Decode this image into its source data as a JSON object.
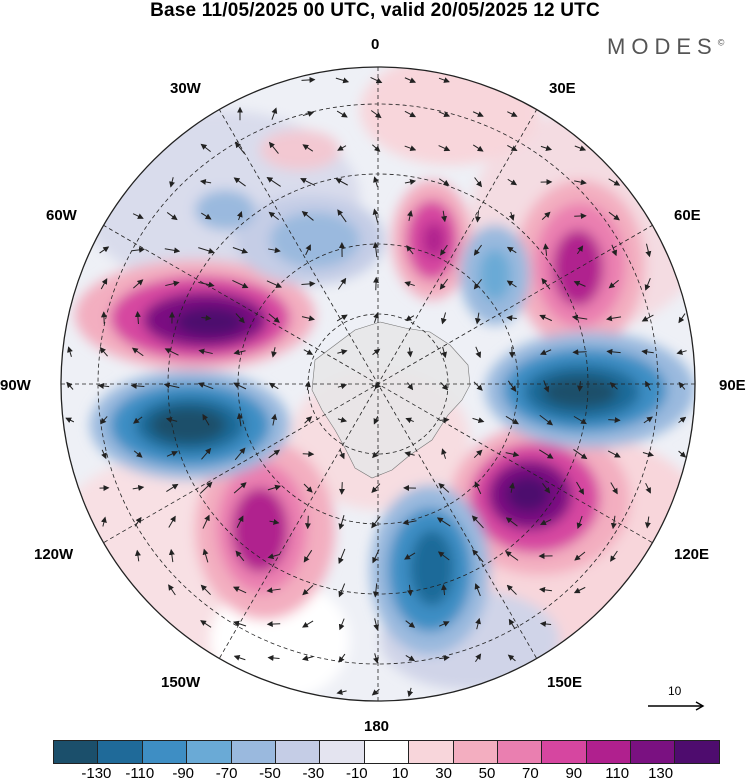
{
  "title": "Base 11/05/2025 00 UTC, valid 20/05/2025 12 UTC",
  "brand": "MODES",
  "brand_mark": "©",
  "longitudes": {
    "top": "0",
    "top_right": "30E",
    "right_upper": "60E",
    "right": "90E",
    "right_lower": "120E",
    "bottom_right": "150E",
    "bottom": "180",
    "bottom_left": "150W",
    "left_lower": "120W",
    "left": "90W",
    "left_upper": "60W",
    "top_left": "30W"
  },
  "reference_vector": "10",
  "colorbar": {
    "colors": [
      "#1b4f6b",
      "#1f6a99",
      "#3e8ec4",
      "#6aaad6",
      "#9ab9de",
      "#c5cde6",
      "#e4e4f0",
      "#ffffff",
      "#f8d6db",
      "#f3aec0",
      "#ea7fb0",
      "#d646a0",
      "#b0208e",
      "#7a1181",
      "#4e0c6e"
    ],
    "ticks": [
      "-130",
      "-110",
      "-90",
      "-70",
      "-50",
      "-30",
      "-10",
      "10",
      "30",
      "50",
      "70",
      "90",
      "110",
      "130"
    ]
  }
}
